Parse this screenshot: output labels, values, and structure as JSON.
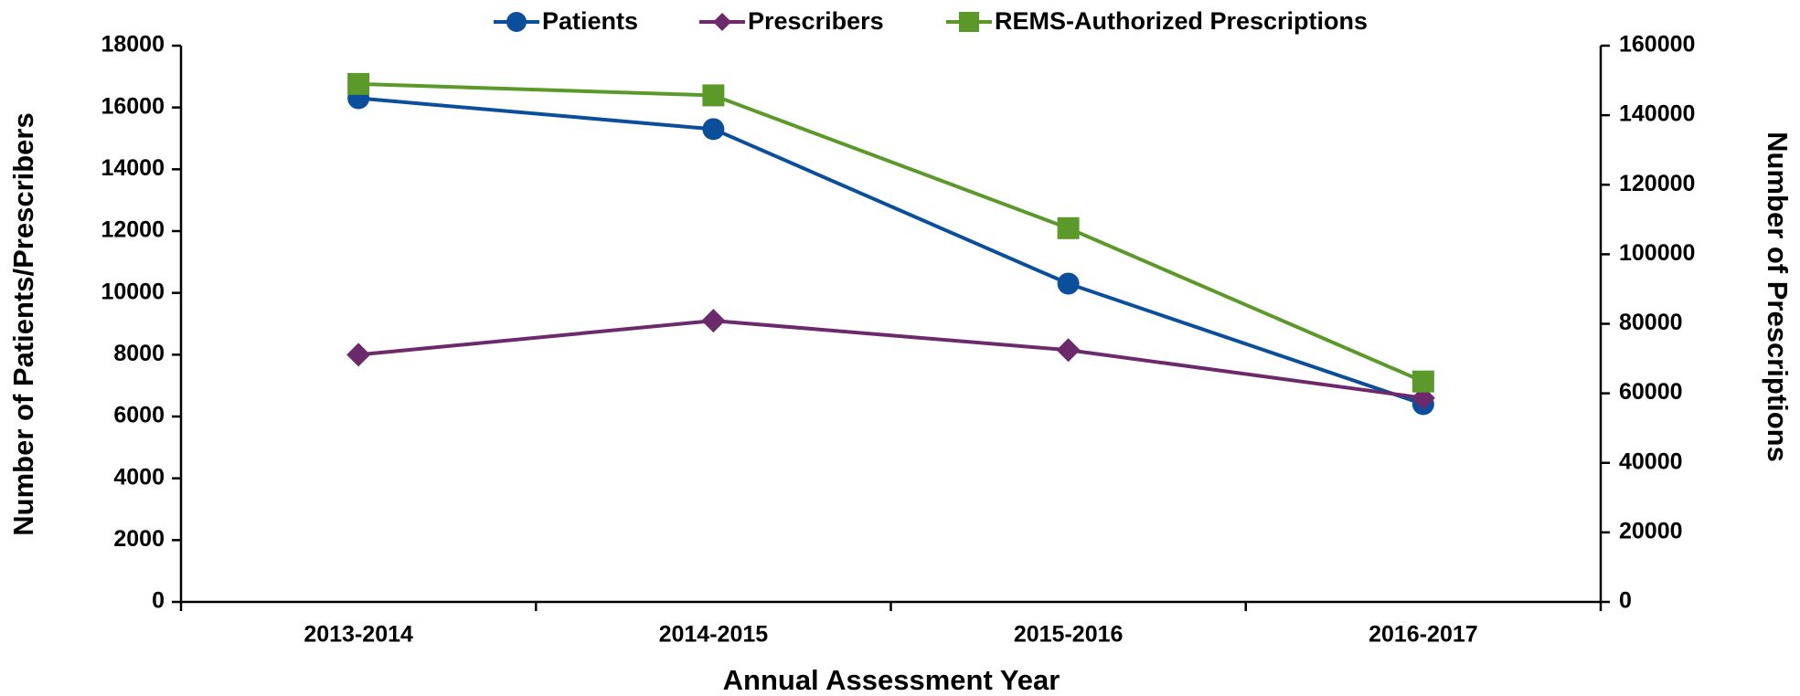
{
  "chart_data": {
    "type": "line",
    "x_label": "Annual Assessment Year",
    "y_label": "Number of Patients/Prescribers",
    "y2_label": "Number of Prescriptions",
    "categories": [
      "2013-2014",
      "2014-2015",
      "2015-2016",
      "2016-2017"
    ],
    "series": [
      {
        "name": "Patients",
        "color": "#0b4f9c",
        "marker": "circle",
        "values": [
          16300,
          15300,
          10300,
          6400
        ]
      },
      {
        "name": "Prescribers",
        "color": "#6c2a6c",
        "marker": "diamond",
        "values": [
          8000,
          9100,
          8150,
          6600
        ]
      },
      {
        "name": "REMS-Authorized Prescriptions",
        "color": "#5b9a2a",
        "marker": "square",
        "axis": "y2",
        "values": [
          149000,
          145700,
          107500,
          63400
        ]
      }
    ],
    "ylim": [
      0,
      18000
    ],
    "yticks": [
      0,
      2000,
      4000,
      6000,
      8000,
      10000,
      12000,
      14000,
      16000,
      18000
    ],
    "y2lim": [
      0,
      160000
    ],
    "y2ticks": [
      0,
      20000,
      40000,
      60000,
      80000,
      100000,
      120000,
      140000,
      160000
    ],
    "legend": "top"
  }
}
